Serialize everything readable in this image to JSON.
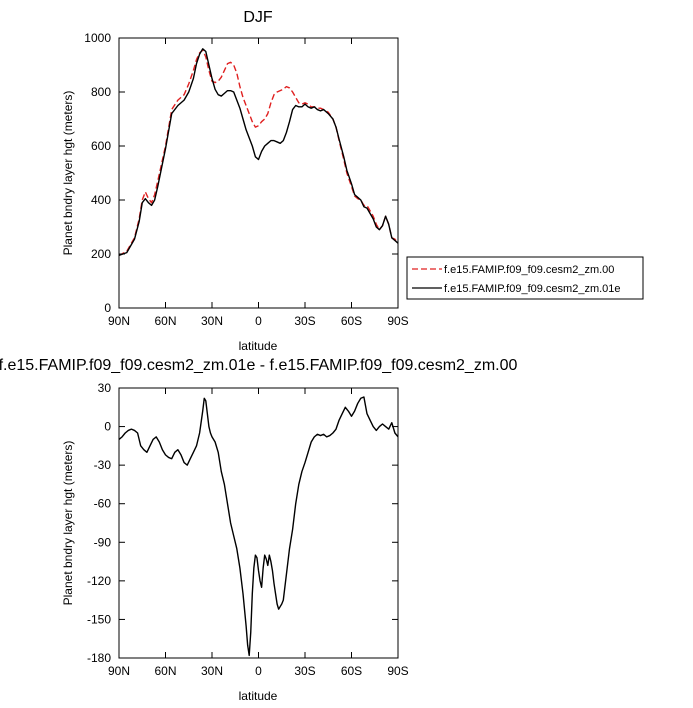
{
  "chart_data": [
    {
      "type": "line",
      "title": "DJF",
      "xlabel": "latitude",
      "ylabel": "Planet bndry layer hgt (meters)",
      "xlim": [
        90,
        -90
      ],
      "ylim": [
        0,
        1000
      ],
      "xticks": [
        90,
        60,
        30,
        0,
        -30,
        -60,
        -90
      ],
      "xtick_labels": [
        "90N",
        "60N",
        "30N",
        "0",
        "30S",
        "60S",
        "90S"
      ],
      "yticks": [
        0,
        200,
        400,
        600,
        800,
        1000
      ],
      "ytick_labels": [
        "0",
        "200",
        "400",
        "600",
        "800",
        "1000"
      ],
      "grid": false,
      "legend_position": "right",
      "series": [
        {
          "name": "f.e15.FAMIP.f09_f09.cesm2_zm.00",
          "color": "#e02020",
          "dash": "dashed",
          "x": [
            90,
            85,
            80,
            77,
            75,
            73,
            71,
            69,
            67,
            65,
            60,
            56,
            52,
            48,
            45,
            42,
            40,
            38,
            36,
            34,
            32,
            30,
            28,
            26,
            24,
            22,
            20,
            18,
            16,
            14,
            12,
            10,
            8,
            6,
            4,
            2,
            0,
            -2,
            -4,
            -6,
            -8,
            -10,
            -12,
            -14,
            -16,
            -18,
            -20,
            -22,
            -24,
            -26,
            -28,
            -30,
            -32,
            -34,
            -36,
            -38,
            -40,
            -42,
            -45,
            -48,
            -50,
            -52,
            -55,
            -57,
            -60,
            -62,
            -64,
            -66,
            -68,
            -70,
            -72,
            -74,
            -76,
            -78,
            -80,
            -82,
            -84,
            -86,
            -88,
            -90
          ],
          "y": [
            195,
            210,
            260,
            330,
            400,
            430,
            405,
            390,
            420,
            470,
            600,
            735,
            770,
            790,
            830,
            880,
            920,
            945,
            955,
            930,
            880,
            840,
            835,
            840,
            855,
            880,
            905,
            910,
            900,
            870,
            820,
            780,
            750,
            720,
            690,
            670,
            675,
            690,
            700,
            720,
            760,
            790,
            800,
            805,
            810,
            820,
            815,
            800,
            780,
            760,
            755,
            760,
            755,
            745,
            745,
            740,
            740,
            735,
            725,
            700,
            670,
            620,
            550,
            500,
            450,
            415,
            405,
            400,
            380,
            380,
            360,
            340,
            310,
            290,
            305,
            340,
            310,
            260,
            255,
            240
          ]
        },
        {
          "name": "f.e15.FAMIP.f09_f09.cesm2_zm.01e",
          "color": "#000000",
          "dash": "solid",
          "x": [
            90,
            85,
            80,
            77,
            75,
            73,
            71,
            69,
            67,
            65,
            60,
            56,
            52,
            48,
            45,
            42,
            40,
            38,
            36,
            34,
            32,
            30,
            28,
            26,
            24,
            22,
            20,
            18,
            16,
            14,
            12,
            10,
            8,
            6,
            4,
            2,
            0,
            -2,
            -4,
            -6,
            -8,
            -10,
            -12,
            -14,
            -16,
            -18,
            -20,
            -22,
            -24,
            -26,
            -28,
            -30,
            -32,
            -34,
            -36,
            -38,
            -40,
            -42,
            -45,
            -48,
            -50,
            -52,
            -55,
            -57,
            -60,
            -62,
            -64,
            -66,
            -68,
            -70,
            -72,
            -74,
            -76,
            -78,
            -80,
            -82,
            -84,
            -86,
            -88,
            -90
          ],
          "y": [
            195,
            205,
            255,
            320,
            390,
            405,
            390,
            380,
            400,
            450,
            590,
            720,
            750,
            770,
            800,
            850,
            905,
            940,
            960,
            950,
            900,
            850,
            810,
            790,
            785,
            795,
            805,
            805,
            800,
            770,
            740,
            700,
            660,
            630,
            600,
            560,
            550,
            580,
            600,
            610,
            620,
            620,
            615,
            610,
            620,
            650,
            690,
            735,
            750,
            745,
            745,
            755,
            745,
            740,
            745,
            735,
            730,
            735,
            720,
            700,
            670,
            625,
            560,
            510,
            460,
            420,
            410,
            400,
            375,
            370,
            350,
            330,
            300,
            290,
            305,
            340,
            310,
            260,
            250,
            240
          ]
        }
      ]
    },
    {
      "type": "line",
      "title": "f.e15.FAMIP.f09_f09.cesm2_zm.01e - f.e15.FAMIP.f09_f09.cesm2_zm.00",
      "xlabel": "latitude",
      "ylabel": "Planet bndry layer hgt (meters)",
      "xlim": [
        90,
        -90
      ],
      "ylim": [
        -180,
        30
      ],
      "xticks": [
        90,
        60,
        30,
        0,
        -30,
        -60,
        -90
      ],
      "xtick_labels": [
        "90N",
        "60N",
        "30N",
        "0",
        "30S",
        "60S",
        "90S"
      ],
      "yticks": [
        30,
        0,
        -30,
        -60,
        -90,
        -120,
        -150,
        -180
      ],
      "ytick_labels": [
        "30",
        "0",
        "-30",
        "-60",
        "-90",
        "-120",
        "-150",
        "-180"
      ],
      "grid": false,
      "series": [
        {
          "color": "#000000",
          "x": [
            90,
            88,
            86,
            84,
            82,
            80,
            78,
            76,
            74,
            72,
            70,
            68,
            66,
            64,
            62,
            60,
            58,
            56,
            54,
            52,
            50,
            48,
            46,
            44,
            42,
            40,
            38,
            36,
            35,
            34,
            33,
            32,
            31,
            30,
            28,
            26,
            24,
            22,
            20,
            18,
            16,
            14,
            12,
            10,
            8,
            7,
            6,
            5,
            4,
            3,
            2,
            1,
            0,
            -1,
            -2,
            -3,
            -4,
            -5,
            -6,
            -7,
            -8,
            -9,
            -10,
            -11,
            -12,
            -13,
            -14,
            -15,
            -16,
            -18,
            -20,
            -22,
            -24,
            -26,
            -28,
            -30,
            -32,
            -34,
            -36,
            -38,
            -40,
            -42,
            -44,
            -46,
            -48,
            -50,
            -52,
            -54,
            -56,
            -58,
            -60,
            -62,
            -64,
            -66,
            -68,
            -70,
            -72,
            -74,
            -76,
            -78,
            -80,
            -82,
            -84,
            -86,
            -88,
            -90
          ],
          "y": [
            -10,
            -8,
            -5,
            -3,
            -2,
            -3,
            -5,
            -15,
            -18,
            -20,
            -15,
            -10,
            -8,
            -12,
            -18,
            -22,
            -24,
            -25,
            -20,
            -18,
            -22,
            -28,
            -30,
            -25,
            -20,
            -15,
            -5,
            12,
            22,
            20,
            10,
            0,
            -5,
            -8,
            -12,
            -20,
            -35,
            -45,
            -60,
            -75,
            -85,
            -95,
            -110,
            -130,
            -155,
            -170,
            -178,
            -160,
            -130,
            -110,
            -100,
            -102,
            -112,
            -120,
            -125,
            -110,
            -100,
            -103,
            -108,
            -100,
            -105,
            -112,
            -122,
            -130,
            -138,
            -142,
            -140,
            -138,
            -135,
            -115,
            -95,
            -80,
            -60,
            -45,
            -35,
            -28,
            -20,
            -12,
            -8,
            -6,
            -7,
            -6,
            -8,
            -7,
            -5,
            -2,
            5,
            10,
            15,
            12,
            8,
            12,
            18,
            22,
            23,
            10,
            5,
            0,
            -3,
            0,
            2,
            0,
            -2,
            3,
            -5,
            -8
          ]
        }
      ]
    }
  ],
  "legend": {
    "entries": [
      {
        "label": "f.e15.FAMIP.f09_f09.cesm2_zm.00",
        "color": "#e02020",
        "dash": "dashed"
      },
      {
        "label": "f.e15.FAMIP.f09_f09.cesm2_zm.01e",
        "color": "#000000",
        "dash": "solid"
      }
    ]
  }
}
